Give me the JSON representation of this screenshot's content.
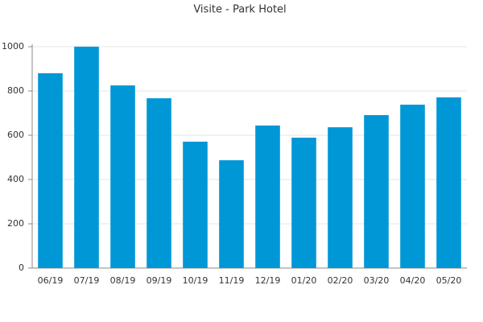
{
  "chart_data": {
    "type": "bar",
    "title": "Visite - Park Hotel",
    "categories": [
      "06/19",
      "07/19",
      "08/19",
      "09/19",
      "10/19",
      "11/19",
      "12/19",
      "01/20",
      "02/20",
      "03/20",
      "04/20",
      "05/20"
    ],
    "values": [
      880,
      1000,
      825,
      767,
      571,
      487,
      644,
      589,
      636,
      691,
      738,
      771
    ],
    "color": "#0097d6",
    "ylim": [
      0,
      1000
    ],
    "yticks": [
      0,
      200,
      400,
      600,
      800,
      1000
    ],
    "grid": true
  }
}
